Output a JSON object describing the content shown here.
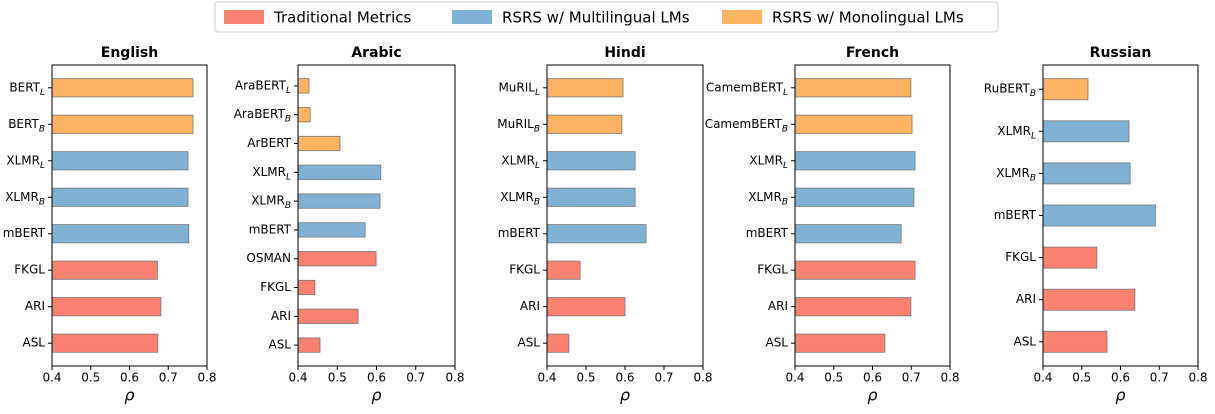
{
  "legend": [
    {
      "name": "Traditional Metrics",
      "color": "#fa8072"
    },
    {
      "name": "RSRS w/ Multilingual LMs",
      "color": "#80b1d3"
    },
    {
      "name": "RSRS w/ Monolingual LMs",
      "color": "#fdb462"
    }
  ],
  "chart_data": [
    {
      "type": "bar",
      "orientation": "horizontal",
      "title": "English",
      "xlabel": "ρ",
      "categories": [
        "ASL",
        "ARI",
        "FKGL",
        "mBERT",
        "XLMR_B",
        "XLMR_L",
        "BERT_B",
        "BERT_L"
      ],
      "values": [
        0.673,
        0.681,
        0.672,
        0.753,
        0.751,
        0.751,
        0.764,
        0.764
      ],
      "groups": [
        0,
        0,
        0,
        1,
        1,
        1,
        2,
        2
      ],
      "xlim": [
        0.4,
        0.8
      ],
      "xticks": [
        0.4,
        0.5,
        0.6,
        0.7,
        0.8
      ]
    },
    {
      "type": "bar",
      "orientation": "horizontal",
      "title": "Arabic",
      "xlabel": "ρ",
      "categories": [
        "ASL",
        "ARI",
        "FKGL",
        "OSMAN",
        "mBERT",
        "XLMR_B",
        "XLMR_L",
        "ArBERT",
        "AraBERT_B",
        "AraBERT_L"
      ],
      "values": [
        0.456,
        0.553,
        0.443,
        0.599,
        0.571,
        0.609,
        0.611,
        0.507,
        0.431,
        0.428
      ],
      "groups": [
        0,
        0,
        0,
        0,
        1,
        1,
        1,
        2,
        2,
        2
      ],
      "xlim": [
        0.4,
        0.8
      ],
      "xticks": [
        0.4,
        0.5,
        0.6,
        0.7,
        0.8
      ]
    },
    {
      "type": "bar",
      "orientation": "horizontal",
      "title": "Hindi",
      "xlabel": "ρ",
      "categories": [
        "ASL",
        "ARI",
        "FKGL",
        "mBERT",
        "XLMR_B",
        "XLMR_L",
        "MuRIL_B",
        "MuRIL_L"
      ],
      "values": [
        0.456,
        0.6,
        0.485,
        0.654,
        0.626,
        0.626,
        0.592,
        0.595
      ],
      "groups": [
        0,
        0,
        0,
        1,
        1,
        1,
        2,
        2
      ],
      "xlim": [
        0.4,
        0.8
      ],
      "xticks": [
        0.4,
        0.5,
        0.6,
        0.7,
        0.8
      ]
    },
    {
      "type": "bar",
      "orientation": "horizontal",
      "title": "French",
      "xlabel": "ρ",
      "categories": [
        "ASL",
        "ARI",
        "FKGL",
        "mBERT",
        "XLMR_B",
        "XLMR_L",
        "CamemBERT_B",
        "CamemBERT_L"
      ],
      "values": [
        0.632,
        0.699,
        0.71,
        0.674,
        0.707,
        0.71,
        0.702,
        0.699
      ],
      "groups": [
        0,
        0,
        0,
        1,
        1,
        1,
        2,
        2
      ],
      "xlim": [
        0.4,
        0.8
      ],
      "xticks": [
        0.4,
        0.5,
        0.6,
        0.7,
        0.8
      ]
    },
    {
      "type": "bar",
      "orientation": "horizontal",
      "title": "Russian",
      "xlabel": "ρ",
      "categories": [
        "ASL",
        "ARI",
        "FKGL",
        "mBERT",
        "XLMR_B",
        "XLMR_L",
        "RuBERT_B"
      ],
      "values": [
        0.565,
        0.637,
        0.539,
        0.69,
        0.625,
        0.622,
        0.516
      ],
      "groups": [
        0,
        0,
        0,
        1,
        1,
        1,
        2
      ],
      "xlim": [
        0.4,
        0.8
      ],
      "xticks": [
        0.4,
        0.5,
        0.6,
        0.7,
        0.8
      ]
    }
  ]
}
